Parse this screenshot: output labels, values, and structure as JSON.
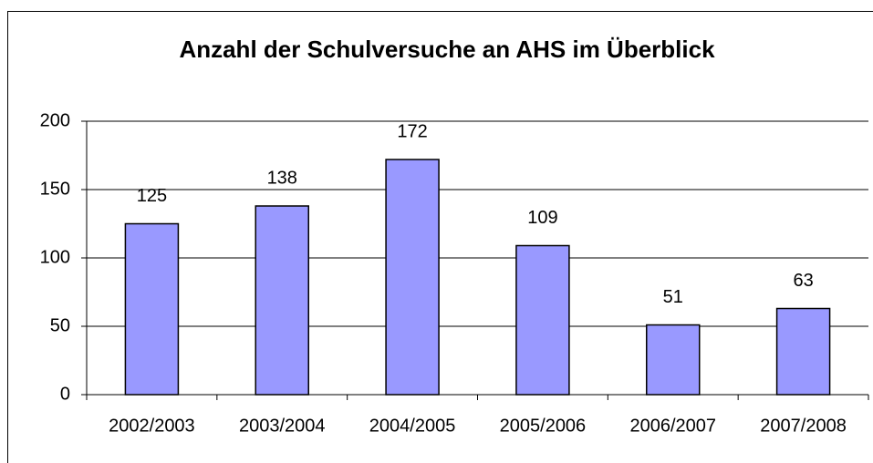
{
  "chart_data": {
    "type": "bar",
    "title": "Anzahl der Schulversuche an AHS im Überblick",
    "categories": [
      "2002/2003",
      "2003/2004",
      "2004/2005",
      "2005/2006",
      "2006/2007",
      "2007/2008"
    ],
    "values": [
      125,
      138,
      172,
      109,
      51,
      63
    ],
    "color": "#9999ff",
    "ylim": [
      0,
      200
    ],
    "yticks": [
      0,
      50,
      100,
      150,
      200
    ],
    "grid": true
  }
}
